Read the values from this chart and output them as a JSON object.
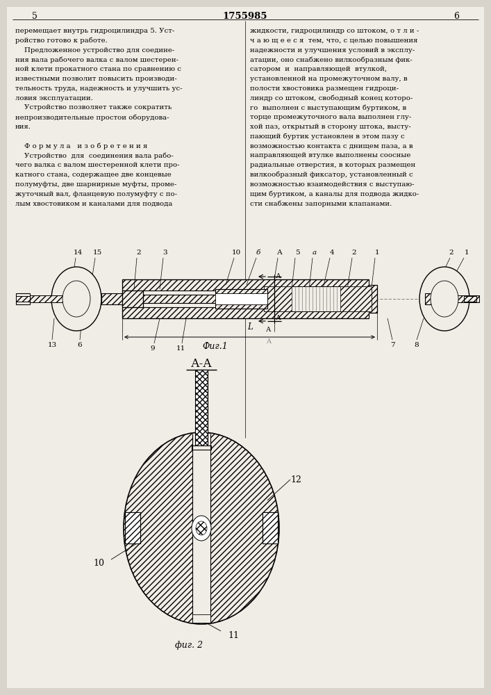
{
  "page_number_left": "5",
  "page_number_center": "1755985",
  "page_number_right": "6",
  "text_left_col": [
    "перемещает внутрь гидроцилиндра 5. Уст-",
    "ройство готово к работе.",
    "    Предложенное устройство для соедине-",
    "ния вала рабочего валка с валом шестерен-",
    "ной клети прокатного стана по сравнению с",
    "известными позволит повысить производи-",
    "тельность труда, надежность и улучшить ус-",
    "ловия эксплуатации.",
    "    Устройство позволяет также сократить",
    "непроизводительные простои оборудова-",
    "ния.",
    "",
    "    Ф о р м у л а   и з о б р е т е н и я",
    "    Устройство  для  соединения вала рабо-",
    "чего валка с валом шестеренной клети про-",
    "катного стана, содержащее две концевые",
    "полумуфты, две шарнирные муфты, проме-",
    "жуточный вал, фланцевую полумуфту с по-",
    "лым хвостовиком и каналами для подвода"
  ],
  "text_right_col": [
    "жидкости, гидроцилиндр со штоком, о т л и -",
    "ч а ю щ е е с я  тем, что, с целью повышения",
    "надежности и улучшения условий в эксплу-",
    "атации, оно снабжено вилкообразным фик-",
    "сатором  и  направляющей  втулкой,",
    "установленной на промежуточном валу, в",
    "полости хвостовика размещен гидроци-",
    "линдр со штоком, свободный конец которо-",
    "го  выполнен с выступающим буртиком, в",
    "торце промежуточного вала выполнен глу-",
    "хой паз, открытый в сторону штока, высту-",
    "пающий буртик установлен в этом пазу с",
    "возможностью контакта с днищем паза, а в",
    "направляющей втулке выполнены соосные",
    "радиальные отверстия, в которых размещен",
    "вилкообразный фиксатор, установленный с",
    "возможностью взаимодействия с выступаю-",
    "щим буртиком, а каналы для подвода жидко-",
    "сти снабжены запорными клапанами."
  ],
  "fig1_label": "Фиг.1",
  "fig2_label": "фиг. 2",
  "section_label": "А-А",
  "bg_color": "#d8d4cc"
}
